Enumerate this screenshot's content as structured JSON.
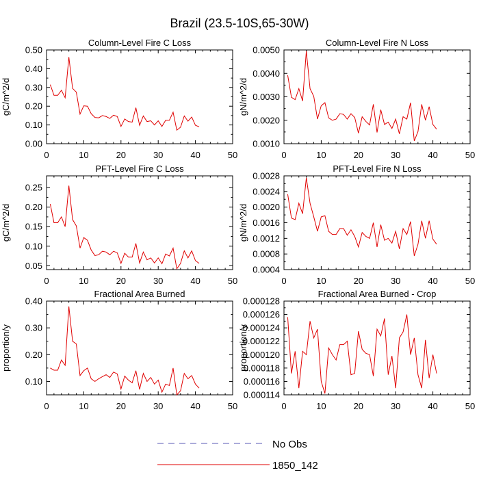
{
  "figure_title": "Brazil (23.5-10S,65-30W)",
  "legend": {
    "items": [
      {
        "label": "No Obs",
        "style": "dashed",
        "color": "#5a5ab4"
      },
      {
        "label": "1850_142",
        "style": "solid",
        "color": "#e00000"
      }
    ]
  },
  "chart_data": [
    {
      "type": "line",
      "title": "Column-Level Fire C Loss",
      "xlabel": "",
      "ylabel": "gC/m^2/d",
      "xlim": [
        0,
        50
      ],
      "ylim": [
        0,
        0.5
      ],
      "xticks": [
        0,
        10,
        20,
        30,
        40,
        50
      ],
      "xtick_labels": [
        "0",
        "10",
        "20",
        "30",
        "40",
        "50"
      ],
      "yticks": [
        0,
        0.1,
        0.2,
        0.3,
        0.4,
        0.5
      ],
      "ytick_labels": [
        "0.00",
        "0.10",
        "0.20",
        "0.30",
        "0.40",
        "0.50"
      ],
      "series": [
        {
          "name": "1850_142",
          "color": "#e00000",
          "x": [
            1,
            2,
            3,
            4,
            5,
            6,
            7,
            8,
            9,
            10,
            11,
            12,
            13,
            14,
            15,
            16,
            17,
            18,
            19,
            20,
            21,
            22,
            23,
            24,
            25,
            26,
            27,
            28,
            29,
            30,
            31,
            32,
            33,
            34,
            35,
            36,
            37,
            38,
            39,
            40,
            41
          ],
          "y": [
            0.315,
            0.258,
            0.258,
            0.285,
            0.245,
            0.462,
            0.295,
            0.275,
            0.158,
            0.202,
            0.2,
            0.16,
            0.14,
            0.138,
            0.15,
            0.145,
            0.135,
            0.152,
            0.145,
            0.092,
            0.132,
            0.118,
            0.115,
            0.192,
            0.098,
            0.148,
            0.118,
            0.122,
            0.1,
            0.122,
            0.092,
            0.125,
            0.125,
            0.168,
            0.072,
            0.088,
            0.148,
            0.12,
            0.142,
            0.098,
            0.09
          ]
        }
      ]
    },
    {
      "type": "line",
      "title": "Column-Level Fire N Loss",
      "xlabel": "",
      "ylabel": "gN/m^2/d",
      "xlim": [
        0,
        50
      ],
      "ylim": [
        0.001,
        0.005
      ],
      "xticks": [
        0,
        10,
        20,
        30,
        40,
        50
      ],
      "xtick_labels": [
        "0",
        "10",
        "20",
        "30",
        "40",
        "50"
      ],
      "yticks": [
        0.001,
        0.002,
        0.003,
        0.004,
        0.005
      ],
      "ytick_labels": [
        "0.0010",
        "0.0020",
        "0.0030",
        "0.0040",
        "0.0050"
      ],
      "series": [
        {
          "name": "1850_142",
          "color": "#e00000",
          "x": [
            1,
            2,
            3,
            4,
            5,
            6,
            7,
            8,
            9,
            10,
            11,
            12,
            13,
            14,
            15,
            16,
            17,
            18,
            19,
            20,
            21,
            22,
            23,
            24,
            25,
            26,
            27,
            28,
            29,
            30,
            31,
            32,
            33,
            34,
            35,
            36,
            37,
            38,
            39,
            40,
            41
          ],
          "y": [
            0.00392,
            0.00298,
            0.00288,
            0.00335,
            0.00282,
            0.00495,
            0.00335,
            0.00302,
            0.00205,
            0.00262,
            0.00275,
            0.0021,
            0.002,
            0.00205,
            0.00228,
            0.00225,
            0.00205,
            0.00228,
            0.00212,
            0.00145,
            0.00215,
            0.00195,
            0.0018,
            0.00268,
            0.00148,
            0.00245,
            0.00182,
            0.00192,
            0.00165,
            0.00205,
            0.00142,
            0.00215,
            0.00205,
            0.00275,
            0.00112,
            0.00152,
            0.00268,
            0.002,
            0.00258,
            0.00182,
            0.00162
          ]
        }
      ]
    },
    {
      "type": "line",
      "title": "PFT-Level Fire C Loss",
      "xlabel": "",
      "ylabel": "gC/m^2/d",
      "xlim": [
        0,
        50
      ],
      "ylim": [
        0.04,
        0.28
      ],
      "xticks": [
        0,
        10,
        20,
        30,
        40,
        50
      ],
      "xtick_labels": [
        "0",
        "10",
        "20",
        "30",
        "40",
        "50"
      ],
      "yticks": [
        0.05,
        0.1,
        0.15,
        0.2,
        0.25
      ],
      "ytick_labels": [
        "0.05",
        "0.10",
        "0.15",
        "0.20",
        "0.25"
      ],
      "series": [
        {
          "name": "1850_142",
          "color": "#e00000",
          "x": [
            1,
            2,
            3,
            4,
            5,
            6,
            7,
            8,
            9,
            10,
            11,
            12,
            13,
            14,
            15,
            16,
            17,
            18,
            19,
            20,
            21,
            22,
            23,
            24,
            25,
            26,
            27,
            28,
            29,
            30,
            31,
            32,
            33,
            34,
            35,
            36,
            37,
            38,
            39,
            40,
            41
          ],
          "y": [
            0.208,
            0.16,
            0.16,
            0.175,
            0.15,
            0.255,
            0.168,
            0.152,
            0.095,
            0.122,
            0.115,
            0.09,
            0.076,
            0.078,
            0.087,
            0.085,
            0.078,
            0.087,
            0.083,
            0.056,
            0.082,
            0.072,
            0.072,
            0.107,
            0.057,
            0.085,
            0.065,
            0.07,
            0.057,
            0.07,
            0.055,
            0.08,
            0.075,
            0.095,
            0.042,
            0.056,
            0.088,
            0.07,
            0.088,
            0.063,
            0.056
          ]
        }
      ]
    },
    {
      "type": "line",
      "title": "PFT-Level Fire N Loss",
      "xlabel": "",
      "ylabel": "gN/m^2/d",
      "xlim": [
        0,
        50
      ],
      "ylim": [
        0.0004,
        0.0028
      ],
      "xticks": [
        0,
        10,
        20,
        30,
        40,
        50
      ],
      "xtick_labels": [
        "0",
        "10",
        "20",
        "30",
        "40",
        "50"
      ],
      "yticks": [
        0.0004,
        0.0008,
        0.0012,
        0.0016,
        0.002,
        0.0024,
        0.0028
      ],
      "ytick_labels": [
        "0.0004",
        "0.0008",
        "0.0012",
        "0.0016",
        "0.0020",
        "0.0024",
        "0.0028"
      ],
      "series": [
        {
          "name": "1850_142",
          "color": "#e00000",
          "x": [
            1,
            2,
            3,
            4,
            5,
            6,
            7,
            8,
            9,
            10,
            11,
            12,
            13,
            14,
            15,
            16,
            17,
            18,
            19,
            20,
            21,
            22,
            23,
            24,
            25,
            26,
            27,
            28,
            29,
            30,
            31,
            32,
            33,
            34,
            35,
            36,
            37,
            38,
            39,
            40,
            41
          ],
          "y": [
            0.00233,
            0.00172,
            0.00168,
            0.0021,
            0.00183,
            0.00275,
            0.0021,
            0.00175,
            0.00138,
            0.00175,
            0.00178,
            0.00138,
            0.0013,
            0.0013,
            0.00145,
            0.00145,
            0.00128,
            0.00142,
            0.00125,
            0.00098,
            0.00135,
            0.00125,
            0.0012,
            0.0016,
            0.00098,
            0.00155,
            0.00115,
            0.0012,
            0.00108,
            0.00138,
            0.00093,
            0.00145,
            0.0013,
            0.00163,
            0.00075,
            0.00105,
            0.00165,
            0.0012,
            0.00165,
            0.00118,
            0.00105
          ]
        }
      ]
    },
    {
      "type": "line",
      "title": "Fractional Area Burned",
      "xlabel": "",
      "ylabel": "proportion/y",
      "xlim": [
        0,
        50
      ],
      "ylim": [
        0.05,
        0.4
      ],
      "xticks": [
        0,
        10,
        20,
        30,
        40,
        50
      ],
      "xtick_labels": [
        "0",
        "10",
        "20",
        "30",
        "40",
        "50"
      ],
      "yticks": [
        0.1,
        0.2,
        0.3,
        0.4
      ],
      "ytick_labels": [
        "0.10",
        "0.20",
        "0.30",
        "0.40"
      ],
      "series": [
        {
          "name": "1850_142",
          "color": "#e00000",
          "x": [
            1,
            2,
            3,
            4,
            5,
            6,
            7,
            8,
            9,
            10,
            11,
            12,
            13,
            14,
            15,
            16,
            17,
            18,
            19,
            20,
            21,
            22,
            23,
            24,
            25,
            26,
            27,
            28,
            29,
            30,
            31,
            32,
            33,
            34,
            35,
            36,
            37,
            38,
            39,
            40,
            41
          ],
          "y": [
            0.15,
            0.142,
            0.142,
            0.18,
            0.16,
            0.38,
            0.25,
            0.24,
            0.122,
            0.14,
            0.15,
            0.11,
            0.1,
            0.11,
            0.118,
            0.125,
            0.115,
            0.135,
            0.128,
            0.072,
            0.12,
            0.105,
            0.095,
            0.14,
            0.07,
            0.13,
            0.1,
            0.115,
            0.09,
            0.105,
            0.06,
            0.09,
            0.085,
            0.15,
            0.05,
            0.065,
            0.13,
            0.11,
            0.122,
            0.09,
            0.075
          ]
        }
      ]
    },
    {
      "type": "line",
      "title": "Fractional Area Burned - Crop",
      "xlabel": "",
      "ylabel": "proportion/y",
      "xlim": [
        0,
        50
      ],
      "ylim": [
        0.000114,
        0.000128
      ],
      "xticks": [
        0,
        10,
        20,
        30,
        40,
        50
      ],
      "xtick_labels": [
        "0",
        "10",
        "20",
        "30",
        "40",
        "50"
      ],
      "yticks": [
        0.000114,
        0.000116,
        0.000118,
        0.00012,
        0.000122,
        0.000124,
        0.000126,
        0.000128
      ],
      "ytick_labels": [
        "0.000114",
        "0.000116",
        "0.000118",
        "0.000120",
        "0.000122",
        "0.000124",
        "0.000126",
        "0.000128"
      ],
      "series": [
        {
          "name": "1850_142",
          "color": "#e00000",
          "x": [
            1,
            2,
            3,
            4,
            5,
            6,
            7,
            8,
            9,
            10,
            11,
            12,
            13,
            14,
            15,
            16,
            17,
            18,
            19,
            20,
            21,
            22,
            23,
            24,
            25,
            26,
            27,
            28,
            29,
            30,
            31,
            32,
            33,
            34,
            35,
            36,
            37,
            38,
            39,
            40,
            41
          ],
          "y": [
            0.0001256,
            0.0001172,
            0.0001205,
            0.000115,
            0.0001205,
            0.00012,
            0.000125,
            0.0001225,
            0.0001238,
            0.000116,
            0.0001142,
            0.000121,
            0.00012,
            0.0001192,
            0.0001215,
            0.0001215,
            0.000122,
            0.000117,
            0.0001172,
            0.0001235,
            0.0001208,
            0.0001202,
            0.00012,
            0.0001168,
            0.0001238,
            0.0001228,
            0.0001254,
            0.000117,
            0.0001198,
            0.000115,
            0.0001225,
            0.0001234,
            0.000126,
            0.00012,
            0.0001225,
            0.000117,
            0.000115,
            0.0001222,
            0.0001165,
            0.00012,
            0.0001172
          ]
        }
      ]
    }
  ]
}
